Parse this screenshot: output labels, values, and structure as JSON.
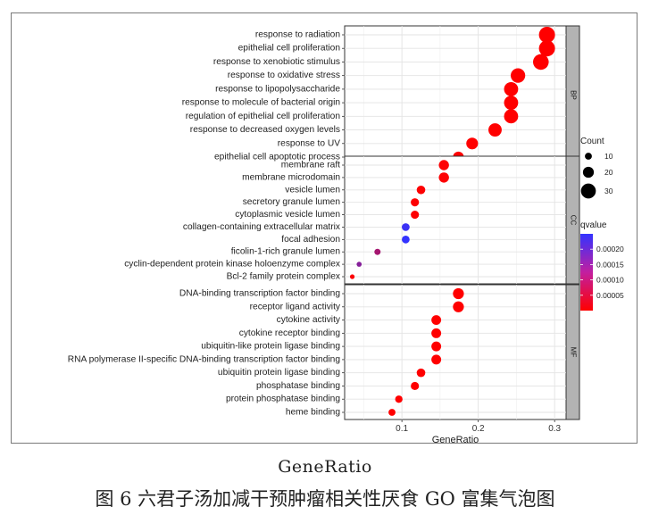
{
  "chart_data": {
    "type": "scatter",
    "xlabel": "GeneRatio",
    "xticks": [
      0.1,
      0.2,
      0.3
    ],
    "xlim": [
      0.025,
      0.315
    ],
    "facets": [
      {
        "label": "BP",
        "terms": [
          {
            "name": "response to radiation",
            "ratio": 0.29,
            "count": 33,
            "qvalue": 2e-07
          },
          {
            "name": "epithelial cell proliferation",
            "ratio": 0.29,
            "count": 33,
            "qvalue": 1e-07
          },
          {
            "name": "response to xenobiotic stimulus",
            "ratio": 0.282,
            "count": 32,
            "qvalue": 1e-07
          },
          {
            "name": "response to oxidative stress",
            "ratio": 0.252,
            "count": 29,
            "qvalue": 1e-07
          },
          {
            "name": "response to lipopolysaccharide",
            "ratio": 0.243,
            "count": 28,
            "qvalue": 1e-07
          },
          {
            "name": "response to molecule of bacterial origin",
            "ratio": 0.243,
            "count": 28,
            "qvalue": 1e-07
          },
          {
            "name": "regulation of epithelial cell proliferation",
            "ratio": 0.243,
            "count": 28,
            "qvalue": 1e-07
          },
          {
            "name": "response to decreased oxygen levels",
            "ratio": 0.222,
            "count": 26,
            "qvalue": 1e-07
          },
          {
            "name": "response to UV",
            "ratio": 0.192,
            "count": 22,
            "qvalue": 1e-07
          },
          {
            "name": "epithelial cell apoptotic process",
            "ratio": 0.174,
            "count": 20,
            "qvalue": 1e-07
          }
        ]
      },
      {
        "label": "CC",
        "terms": [
          {
            "name": "membrane raft",
            "ratio": 0.155,
            "count": 18,
            "qvalue": 3e-06
          },
          {
            "name": "membrane microdomain",
            "ratio": 0.155,
            "count": 18,
            "qvalue": 3e-06
          },
          {
            "name": "vesicle lumen",
            "ratio": 0.125,
            "count": 14,
            "qvalue": 3e-06
          },
          {
            "name": "secretory granule lumen",
            "ratio": 0.117,
            "count": 13,
            "qvalue": 3e-06
          },
          {
            "name": "cytoplasmic vesicle lumen",
            "ratio": 0.117,
            "count": 13,
            "qvalue": 3e-06
          },
          {
            "name": "collagen-containing extracellular matrix",
            "ratio": 0.105,
            "count": 12,
            "qvalue": 0.00024
          },
          {
            "name": "focal adhesion",
            "ratio": 0.105,
            "count": 12,
            "qvalue": 0.00025
          },
          {
            "name": "ficolin-1-rich granule lumen",
            "ratio": 0.068,
            "count": 8,
            "qvalue": 0.00011
          },
          {
            "name": "cyclin-dependent protein kinase holoenzyme complex",
            "ratio": 0.044,
            "count": 5,
            "qvalue": 0.00015
          },
          {
            "name": "Bcl-2 family protein complex",
            "ratio": 0.035,
            "count": 4,
            "qvalue": 4e-06
          }
        ]
      },
      {
        "label": "MF",
        "terms": [
          {
            "name": "DNA-binding transcription factor binding",
            "ratio": 0.174,
            "count": 20,
            "qvalue": 1e-07
          },
          {
            "name": "receptor ligand activity",
            "ratio": 0.174,
            "count": 20,
            "qvalue": 1e-07
          },
          {
            "name": "cytokine activity",
            "ratio": 0.145,
            "count": 17,
            "qvalue": 1e-07
          },
          {
            "name": "cytokine receptor binding",
            "ratio": 0.145,
            "count": 17,
            "qvalue": 1e-07
          },
          {
            "name": "ubiquitin-like protein ligase binding",
            "ratio": 0.145,
            "count": 17,
            "qvalue": 1e-07
          },
          {
            "name": "RNA polymerase II-specific DNA-binding transcription factor binding",
            "ratio": 0.145,
            "count": 17,
            "qvalue": 1e-07
          },
          {
            "name": "ubiquitin protein ligase binding",
            "ratio": 0.125,
            "count": 14,
            "qvalue": 1e-07
          },
          {
            "name": "phosphatase binding",
            "ratio": 0.117,
            "count": 13,
            "qvalue": 1e-07
          },
          {
            "name": "protein phosphatase binding",
            "ratio": 0.096,
            "count": 11,
            "qvalue": 1e-07
          },
          {
            "name": "heme binding",
            "ratio": 0.087,
            "count": 10,
            "qvalue": 1e-07
          }
        ]
      }
    ],
    "size_legend": {
      "title": "Count",
      "values": [
        10,
        20,
        30
      ]
    },
    "color_legend": {
      "title": "qvalue",
      "ticks": [
        0.0002,
        0.00015,
        0.0001,
        5e-05
      ],
      "tick_labels": [
        "0.00020",
        "0.00015",
        "0.00010",
        "0.00005"
      ],
      "range": [
        0,
        0.00025
      ],
      "color_low": "#ff0000",
      "color_high": "#3333ff"
    },
    "grid": true,
    "strip_color": "#b3b3b3"
  },
  "outer_xlabel": "GeneRatio",
  "figure_caption": "图 6 六君子汤加减干预肿瘤相关性厌食 GO 富集气泡图"
}
